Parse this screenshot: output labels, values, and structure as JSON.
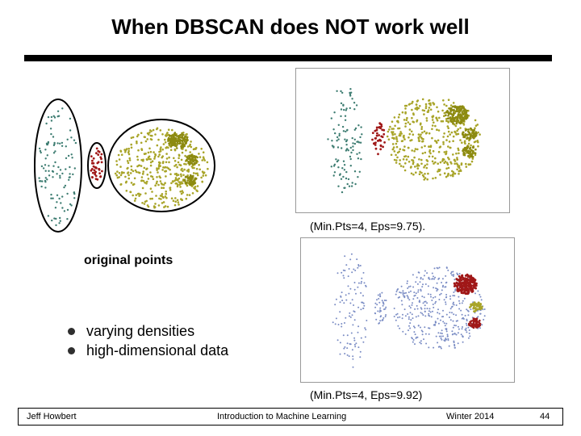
{
  "slide": {
    "title": "When DBSCAN does NOT work well",
    "original_label": "original points",
    "caption_1": "(Min.Pts=4, Eps=9.75).",
    "caption_2": "(Min.Pts=4, Eps=9.92)",
    "bullets": [
      "varying densities",
      "high-dimensional data"
    ]
  },
  "footer": {
    "author": "Jeff Howbert",
    "course": "Introduction to Machine Learning",
    "term": "Winter 2014",
    "page": "44"
  },
  "colors": {
    "teal": "#3e7d72",
    "red": "#a01818",
    "olive": "#a8a428",
    "blue": "#7a8cc4"
  }
}
